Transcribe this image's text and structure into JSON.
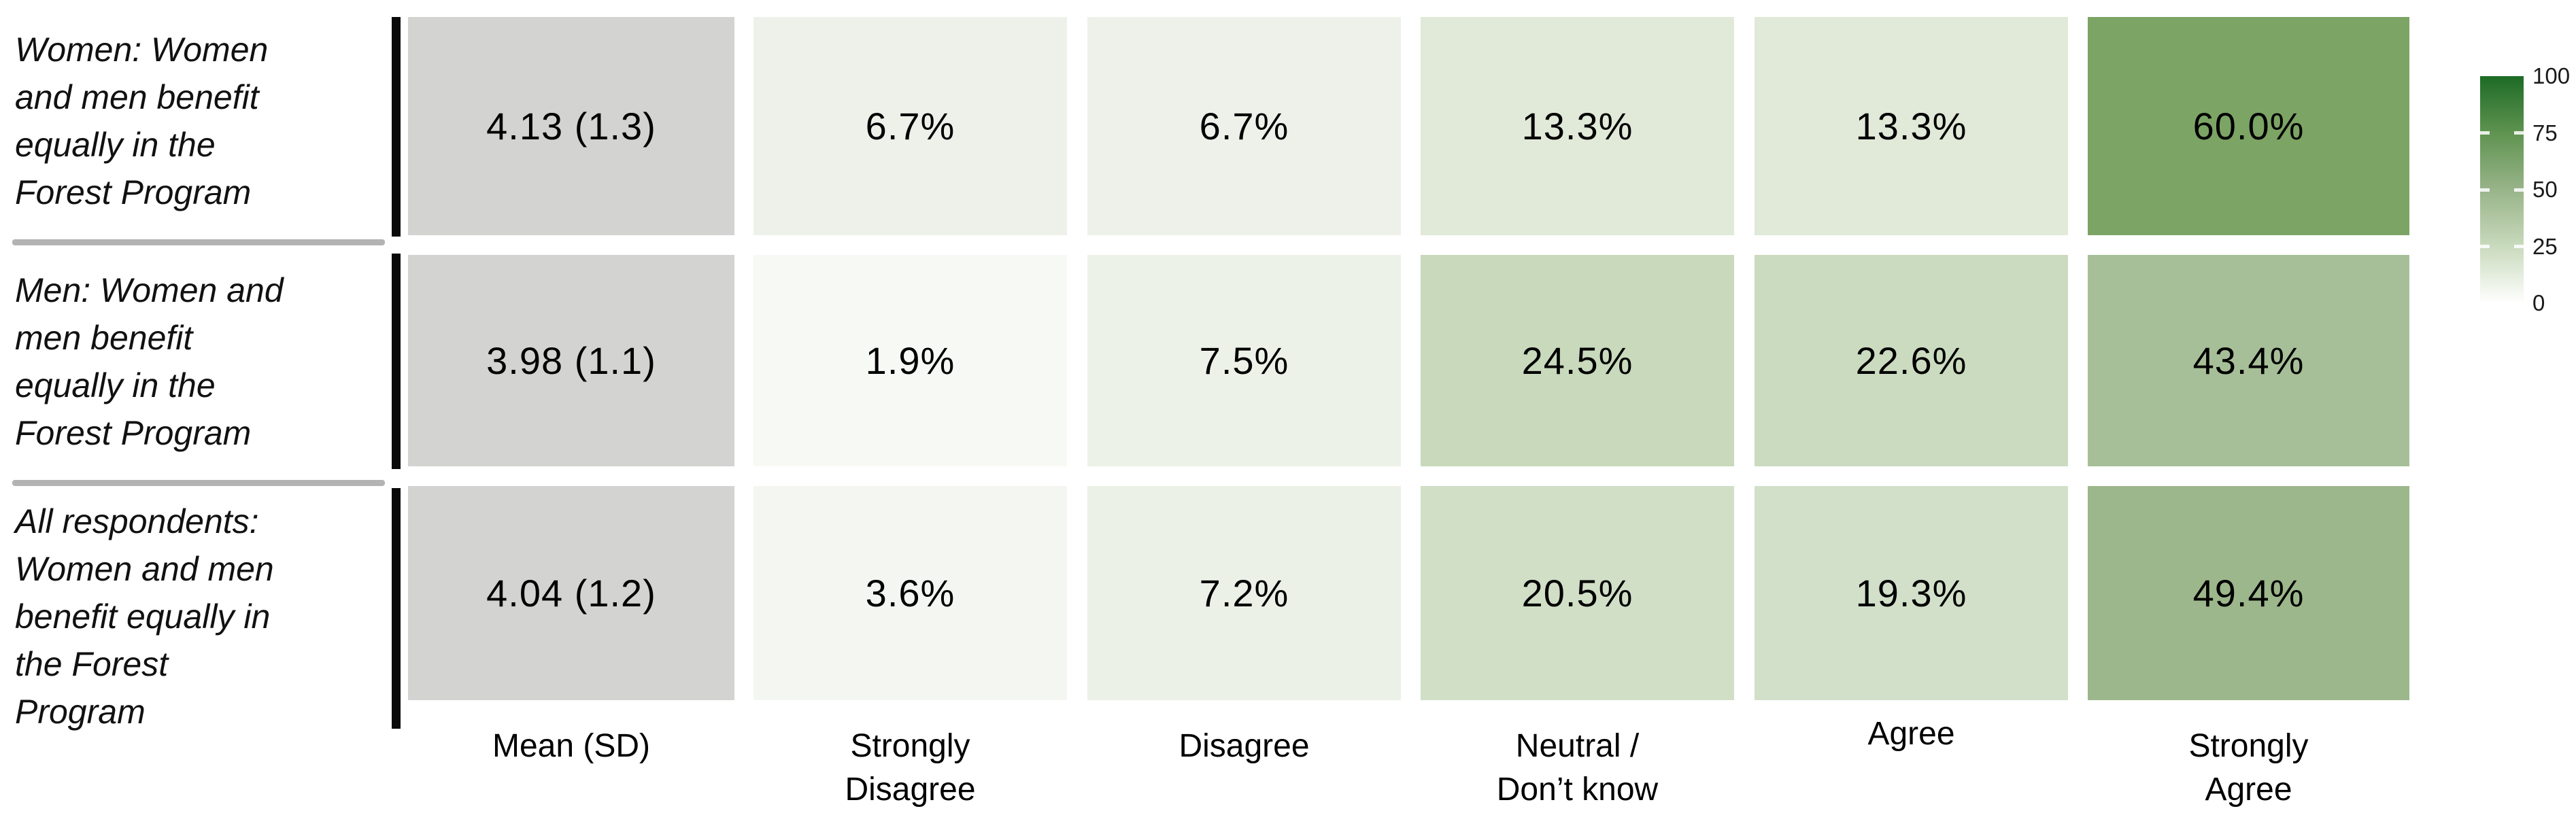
{
  "chart_data": {
    "type": "heatmap",
    "title": "",
    "unit": "percent of respondents; cell shading encodes value on 0-100 green scale",
    "columns": [
      "Mean (SD)",
      "Strongly Disagree",
      "Disagree",
      "Neutral / Don’t know",
      "Agree",
      "Strongly Agree"
    ],
    "columns_display": [
      "Mean (SD)",
      "Strongly\nDisagree",
      "Disagree",
      "Neutral /\nDon’t know",
      "Agree",
      "Strongly\nAgree"
    ],
    "rows": [
      {
        "label": "Women: Women and men benefit equally in the Forest Program",
        "label_display": "Women: Women\nand men benefit\nequally in the\nForest Program",
        "mean_sd": "4.13 (1.3)",
        "values": [
          6.7,
          6.7,
          13.3,
          13.3,
          60.0
        ],
        "cells": [
          "4.13 (1.3)",
          "6.7%",
          "6.7%",
          "13.3%",
          "13.3%",
          "60.0%"
        ],
        "colors": [
          "#d3d3d1",
          "#edf1ea",
          "#edf1ea",
          "#e1e9d8",
          "#e1e9d8",
          "#7ca465"
        ]
      },
      {
        "label": "Men: Women and men benefit equally in the Forest Program",
        "label_display": "Men: Women and\nmen benefit\nequally in the\nForest Program",
        "mean_sd": "3.98 (1.1)",
        "values": [
          1.9,
          7.5,
          24.5,
          22.6,
          43.4
        ],
        "cells": [
          "3.98 (1.1)",
          "1.9%",
          "7.5%",
          "24.5%",
          "22.6%",
          "43.4%"
        ],
        "colors": [
          "#d3d3d1",
          "#f7faf4",
          "#edf2e8",
          "#c8d9bc",
          "#cbdbc0",
          "#a7bf98"
        ]
      },
      {
        "label": "All respondents: Women and men benefit equally in the Forest Program",
        "label_display": "All respondents:\nWomen and men\nbenefit equally in\nthe Forest\nProgram",
        "mean_sd": "4.04 (1.2)",
        "values": [
          3.6,
          7.2,
          20.5,
          19.3,
          49.4
        ],
        "cells": [
          "4.04 (1.2)",
          "3.6%",
          "7.2%",
          "20.5%",
          "19.3%",
          "49.4%"
        ],
        "colors": [
          "#d3d3d1",
          "#f4f7f1",
          "#ecf1e7",
          "#d0dfc6",
          "#d2e0c9",
          "#9cb78b"
        ]
      }
    ],
    "legend": {
      "min": 0,
      "max": 100,
      "tick_labels": [
        "100",
        "75",
        "50",
        "25",
        "0"
      ],
      "gradient_low_to_high": [
        "#ffffff",
        "#c9dabd",
        "#98b489",
        "#5f9350",
        "#1d6b26"
      ],
      "position": "right"
    },
    "colors": {
      "mean_column": "#d3d3d1",
      "scale_low": "#ffffff",
      "scale_high": "#1d6b26",
      "row_separator": "#b3b3b3",
      "row_bar": "#0a0a0a"
    },
    "layout_hints": {
      "legend_position": "right",
      "grid": false,
      "row_labels_italic": true
    }
  }
}
